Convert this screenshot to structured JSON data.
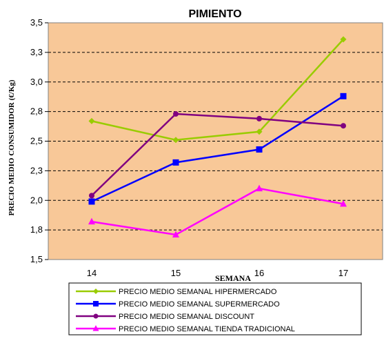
{
  "chart_data": {
    "type": "line",
    "title": "PIMIENTO",
    "xlabel": "SEMANA",
    "ylabel": "PRECIO MEDIO CONSUMIDOR  (€/Kg)",
    "categories": [
      "14",
      "15",
      "16",
      "17"
    ],
    "ylim": [
      1.5,
      3.5
    ],
    "yticks": [
      {
        "value": 1.5,
        "label": "1,5"
      },
      {
        "value": 1.75,
        "label": "1,8"
      },
      {
        "value": 2.0,
        "label": "2,0"
      },
      {
        "value": 2.25,
        "label": "2,3"
      },
      {
        "value": 2.5,
        "label": "2,5"
      },
      {
        "value": 2.75,
        "label": "2,8"
      },
      {
        "value": 3.0,
        "label": "3,0"
      },
      {
        "value": 3.25,
        "label": "3,3"
      },
      {
        "value": 3.5,
        "label": "3,5"
      }
    ],
    "grid": "horizontal-dashed",
    "legend_position": "bottom",
    "plot_background": "#F8C898",
    "series": [
      {
        "name": "PRECIO MEDIO SEMANAL HIPERMERCADO",
        "color": "#99CC00",
        "marker": "diamond",
        "values": [
          2.67,
          2.51,
          2.58,
          3.36
        ]
      },
      {
        "name": "PRECIO MEDIO SEMANAL SUPERMERCADO",
        "color": "#0000FF",
        "marker": "square",
        "values": [
          1.99,
          2.32,
          2.43,
          2.88
        ]
      },
      {
        "name": "PRECIO MEDIO SEMANAL DISCOUNT",
        "color": "#800080",
        "marker": "circle",
        "values": [
          2.04,
          2.73,
          2.69,
          2.63
        ]
      },
      {
        "name": "PRECIO MEDIO SEMANAL TIENDA TRADICIONAL",
        "color": "#FF00FF",
        "marker": "triangle",
        "values": [
          1.82,
          1.71,
          2.1,
          1.97
        ]
      }
    ]
  }
}
